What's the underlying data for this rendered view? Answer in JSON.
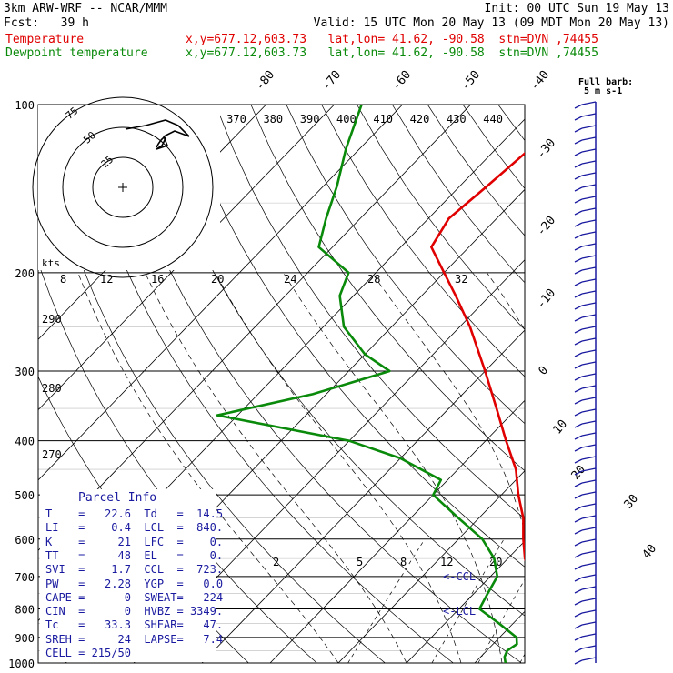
{
  "header": {
    "model": "3km ARW-WRF -- NCAR/MMM",
    "init": "Init: 00 UTC Sun 19 May 13",
    "fcst": "Fcst:   39 h",
    "valid": "Valid: 15 UTC Mon 20 May 13 (09 MDT Mon 20 May 13)",
    "temp_label": "Temperature",
    "temp_loc": "x,y=677.12,603.73   lat,lon= 41.62, -90.58  stn=DVN ,74455",
    "dew_label": "Dewpoint temperature",
    "dew_loc": "x,y=677.12,603.73   lat,lon= 41.62, -90.58  stn=DVN ,74455"
  },
  "colors": {
    "temperature": "#e00000",
    "dewpoint": "#0a8a0a",
    "grid": "#000000",
    "parcel_box": "#1a1aa0"
  },
  "chart_data": {
    "type": "line",
    "subtype": "skew-T log-P sounding",
    "y_axis": {
      "label": "pressure (hPa)",
      "scale": "log",
      "range": [
        1000,
        100
      ],
      "ticks": [
        100,
        200,
        300,
        400,
        500,
        600,
        700,
        800,
        900,
        1000
      ]
    },
    "isotherm_labels": [
      -80,
      -70,
      -60,
      -50,
      -40,
      -30,
      -20,
      -10,
      0,
      10,
      20,
      30,
      40
    ],
    "dry_adiabat_labels": [
      270,
      280,
      290
    ],
    "moist_adiabat_labels": [
      370,
      380,
      390,
      400,
      410,
      420,
      430,
      440
    ],
    "mixing_ratio_labels": [
      2,
      5,
      8,
      12,
      20
    ],
    "hodograph": {
      "ring_labels": [
        25,
        50,
        75
      ],
      "x_labels": [
        "8",
        "12",
        "16",
        "20",
        "24",
        "28",
        "32"
      ],
      "units": "kts"
    },
    "annotations": [
      "<-CCL",
      "<-LCL"
    ],
    "wind_legend": "Full barb:\n5 m s-1",
    "series": [
      {
        "name": "Temperature",
        "points": [
          [
            1000,
            21.5
          ],
          [
            980,
            20.0
          ],
          [
            950,
            18.0
          ],
          [
            925,
            17.0
          ],
          [
            900,
            17.5
          ],
          [
            850,
            15.0
          ],
          [
            800,
            13.0
          ],
          [
            750,
            9.5
          ],
          [
            700,
            6.0
          ],
          [
            650,
            2.5
          ],
          [
            600,
            -0.5
          ],
          [
            550,
            -3.5
          ],
          [
            500,
            -7.5
          ],
          [
            450,
            -11.5
          ],
          [
            400,
            -17.0
          ],
          [
            350,
            -23.0
          ],
          [
            300,
            -30.0
          ],
          [
            250,
            -38.5
          ],
          [
            220,
            -45.0
          ],
          [
            200,
            -50.0
          ],
          [
            180,
            -55.5
          ],
          [
            160,
            -57.0
          ],
          [
            140,
            -56.0
          ],
          [
            120,
            -55.0
          ],
          [
            110,
            -55.5
          ],
          [
            100,
            -56.0
          ]
        ]
      },
      {
        "name": "Dewpoint temperature",
        "points": [
          [
            1000,
            14.5
          ],
          [
            975,
            13.5
          ],
          [
            950,
            13.0
          ],
          [
            925,
            13.5
          ],
          [
            900,
            12.5
          ],
          [
            850,
            8.0
          ],
          [
            800,
            3.0
          ],
          [
            750,
            2.0
          ],
          [
            700,
            1.0
          ],
          [
            650,
            -2.0
          ],
          [
            600,
            -6.5
          ],
          [
            550,
            -13.0
          ],
          [
            500,
            -20.0
          ],
          [
            470,
            -21.0
          ],
          [
            430,
            -30.0
          ],
          [
            400,
            -40.0
          ],
          [
            360,
            -63.0
          ],
          [
            330,
            -52.0
          ],
          [
            300,
            -44.0
          ],
          [
            280,
            -50.0
          ],
          [
            250,
            -57.0
          ],
          [
            220,
            -62.0
          ],
          [
            200,
            -64.0
          ],
          [
            180,
            -72.0
          ],
          [
            160,
            -75.0
          ],
          [
            140,
            -78.0
          ],
          [
            120,
            -82.0
          ],
          [
            100,
            -86.0
          ]
        ]
      }
    ]
  },
  "parcel_info": {
    "title": "Parcel Info",
    "rows": [
      [
        "T",
        "22.6",
        "Td",
        "14.5"
      ],
      [
        "LI",
        "0.4",
        "LCL",
        "840."
      ],
      [
        "K",
        "21",
        "LFC",
        "0."
      ],
      [
        "TT",
        "48",
        "EL",
        "0."
      ],
      [
        "SVI",
        "1.7",
        "CCL",
        "723."
      ],
      [
        "PW",
        "2.28",
        "YGP",
        "0.0"
      ],
      [
        "CAPE",
        "0",
        "SWEAT",
        "224"
      ],
      [
        "CIN",
        "0",
        "HVBZ",
        "3349."
      ],
      [
        "Tc",
        "33.3",
        "SHEAR",
        "47."
      ],
      [
        "SREH",
        "24",
        "LAPSE",
        "7.4"
      ],
      [
        "CELL",
        "215/50",
        "",
        ""
      ]
    ]
  }
}
